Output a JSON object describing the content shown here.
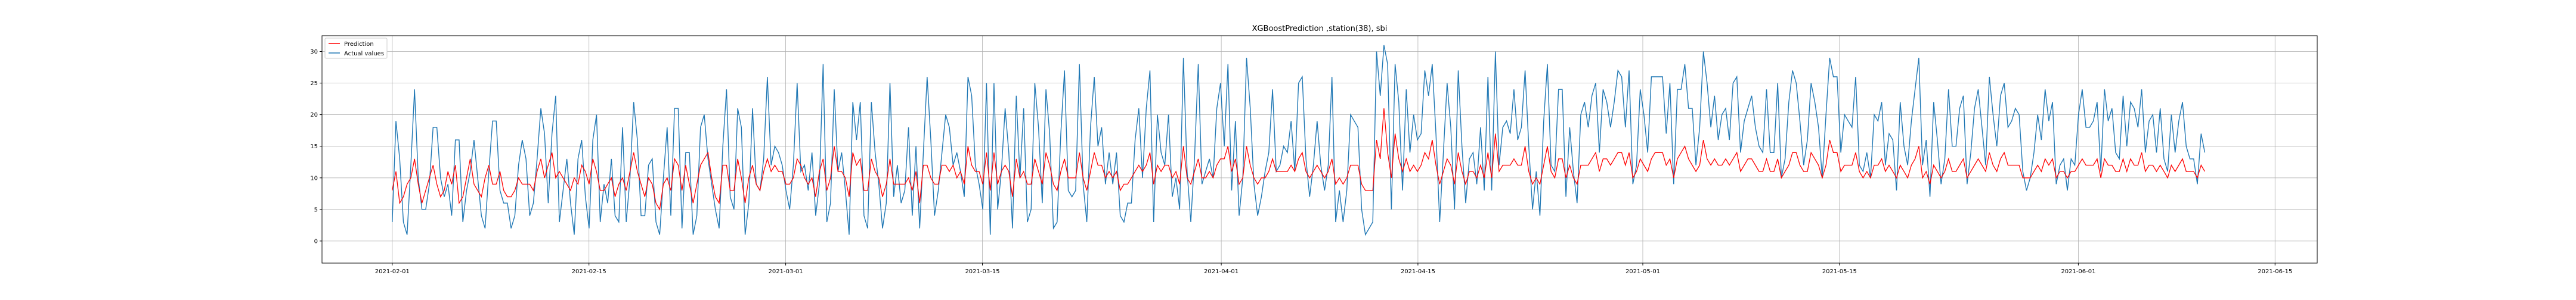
{
  "chart_data": {
    "type": "line",
    "title": "XGBoostPrediction ,station(38), sbi",
    "xlabel": "",
    "ylabel": "",
    "x_range": [
      "2021-01-27",
      "2021-06-18"
    ],
    "ylim": [
      -3.5,
      32.5
    ],
    "yticks": [
      0,
      5,
      10,
      15,
      20,
      25,
      30
    ],
    "xticks": [
      "2021-02-01",
      "2021-02-15",
      "2021-03-01",
      "2021-03-15",
      "2021-04-01",
      "2021-04-15",
      "2021-05-01",
      "2021-05-15",
      "2021-06-01",
      "2021-06-15"
    ],
    "grid": true,
    "legend_position": "top-left",
    "data_start": "2021-02-01",
    "data_end": "2021-06-10",
    "series": [
      {
        "name": "Prediction",
        "color": "#ff0000",
        "values": [
          8,
          11,
          6,
          7,
          9,
          10,
          13,
          9,
          6,
          8,
          10,
          12,
          9,
          7,
          8,
          11,
          9,
          12,
          6,
          7,
          10,
          13,
          9,
          8,
          7,
          10,
          12,
          9,
          9,
          11,
          8,
          7,
          7,
          8,
          10,
          9,
          9,
          9,
          8,
          11,
          13,
          10,
          12,
          14,
          10,
          11,
          10,
          9,
          8,
          10,
          9,
          12,
          11,
          9,
          13,
          11,
          8,
          8,
          9,
          10,
          7,
          9,
          10,
          8,
          11,
          14,
          11,
          9,
          7,
          10,
          9,
          6,
          5,
          9,
          10,
          8,
          13,
          12,
          8,
          12,
          9,
          6,
          9,
          12,
          13,
          14,
          10,
          7,
          6,
          12,
          12,
          8,
          8,
          13,
          10,
          6,
          10,
          12,
          9,
          8,
          11,
          13,
          11,
          12,
          11,
          11,
          9,
          9,
          10,
          13,
          12,
          10,
          9,
          10,
          7,
          11,
          13,
          8,
          10,
          15,
          11,
          11,
          10,
          7,
          14,
          12,
          13,
          8,
          8,
          13,
          11,
          10,
          7,
          9,
          13,
          9,
          9,
          9,
          9,
          10,
          8,
          11,
          6,
          12,
          12,
          10,
          9,
          9,
          12,
          12,
          11,
          12,
          10,
          11,
          9,
          15,
          12,
          11,
          11,
          9,
          14,
          8,
          14,
          9,
          11,
          12,
          11,
          7,
          13,
          10,
          11,
          9,
          9,
          13,
          11,
          9,
          14,
          12,
          9,
          8,
          11,
          13,
          10,
          10,
          10,
          14,
          10,
          8,
          11,
          14,
          12,
          12,
          10,
          11,
          10,
          11,
          8,
          9,
          9,
          10,
          11,
          12,
          11,
          12,
          14,
          9,
          12,
          11,
          12,
          12,
          10,
          11,
          9,
          15,
          10,
          9,
          11,
          13,
          10,
          10,
          11,
          10,
          12,
          13,
          13,
          15,
          11,
          13,
          9,
          10,
          15,
          12,
          10,
          9,
          10,
          10,
          11,
          13,
          11,
          11,
          11,
          11,
          12,
          11,
          13,
          14,
          11,
          10,
          11,
          12,
          11,
          10,
          11,
          13,
          9,
          10,
          9,
          10,
          12,
          12,
          12,
          9,
          8,
          8,
          8,
          16,
          13,
          21,
          14,
          10,
          17,
          13,
          11,
          13,
          11,
          12,
          11,
          12,
          14,
          13,
          16,
          12,
          9,
          11,
          13,
          12,
          9,
          14,
          11,
          9,
          11,
          11,
          10,
          12,
          10,
          14,
          10,
          17,
          11,
          12,
          12,
          12,
          13,
          12,
          12,
          15,
          11,
          9,
          10,
          9,
          12,
          15,
          11,
          10,
          13,
          13,
          10,
          12,
          10,
          9,
          12,
          12,
          12,
          13,
          14,
          11,
          13,
          13,
          12,
          13,
          14,
          14,
          12,
          14,
          10,
          11,
          13,
          12,
          11,
          13,
          14,
          14,
          14,
          12,
          13,
          10,
          13,
          14,
          15,
          13,
          12,
          11,
          12,
          16,
          13,
          12,
          13,
          12,
          12,
          13,
          12,
          13,
          14,
          11,
          12,
          13,
          13,
          12,
          11,
          11,
          13,
          11,
          11,
          13,
          10,
          11,
          12,
          14,
          14,
          12,
          11,
          11,
          14,
          13,
          12,
          10,
          12,
          16,
          14,
          14,
          11,
          12,
          12,
          12,
          14,
          11,
          10,
          11,
          10,
          12,
          12,
          13,
          11,
          12,
          11,
          10,
          12,
          11,
          10,
          12,
          13,
          15,
          10,
          11,
          9,
          12,
          11,
          10,
          11,
          13,
          11,
          11,
          12,
          13,
          10,
          11,
          12,
          13,
          12,
          11,
          14,
          12,
          11,
          13,
          14,
          12,
          12,
          12,
          12,
          10,
          10,
          10,
          11,
          12,
          11,
          13,
          12,
          13,
          10,
          11,
          11,
          10,
          11,
          11,
          12,
          13,
          12,
          12,
          12,
          13,
          10,
          13,
          12,
          12,
          11,
          11,
          13,
          11,
          13,
          12,
          12,
          14,
          11,
          12,
          12,
          11,
          12,
          11,
          10,
          12,
          11,
          12,
          13,
          11,
          11,
          11,
          10,
          12,
          11
        ]
      },
      {
        "name": "Actual values",
        "color": "#1f77b4",
        "values": [
          3,
          19,
          13,
          3,
          1,
          12,
          24,
          10,
          5,
          5,
          9,
          18,
          18,
          10,
          7,
          9,
          4,
          16,
          16,
          3,
          8,
          11,
          16,
          10,
          4,
          2,
          11,
          19,
          19,
          8,
          6,
          6,
          2,
          4,
          12,
          16,
          13,
          4,
          6,
          13,
          21,
          17,
          6,
          17,
          23,
          3,
          8,
          13,
          6,
          1,
          13,
          16,
          7,
          2,
          16,
          20,
          3,
          9,
          6,
          13,
          4,
          3,
          18,
          3,
          10,
          22,
          16,
          4,
          4,
          12,
          13,
          3,
          1,
          10,
          18,
          4,
          21,
          21,
          2,
          14,
          14,
          1,
          4,
          18,
          20,
          13,
          9,
          5,
          2,
          15,
          24,
          7,
          5,
          21,
          18,
          1,
          6,
          21,
          9,
          8,
          13,
          26,
          12,
          15,
          14,
          12,
          8,
          5,
          12,
          25,
          11,
          12,
          8,
          14,
          4,
          9,
          28,
          3,
          6,
          24,
          11,
          14,
          8,
          1,
          22,
          16,
          22,
          4,
          2,
          22,
          14,
          9,
          2,
          6,
          25,
          7,
          12,
          6,
          8,
          18,
          4,
          15,
          2,
          14,
          26,
          16,
          4,
          8,
          14,
          20,
          18,
          12,
          14,
          11,
          7,
          26,
          23,
          12,
          9,
          5,
          25,
          1,
          25,
          5,
          11,
          21,
          14,
          2,
          23,
          10,
          21,
          3,
          5,
          25,
          18,
          6,
          24,
          17,
          2,
          3,
          17,
          27,
          8,
          7,
          8,
          28,
          9,
          3,
          18,
          26,
          15,
          18,
          9,
          14,
          9,
          14,
          4,
          3,
          6,
          6,
          16,
          21,
          10,
          21,
          27,
          3,
          20,
          14,
          12,
          20,
          7,
          10,
          5,
          29,
          11,
          3,
          13,
          28,
          9,
          11,
          13,
          10,
          21,
          25,
          15,
          28,
          8,
          19,
          4,
          10,
          29,
          21,
          9,
          4,
          7,
          11,
          14,
          24,
          11,
          12,
          15,
          14,
          19,
          11,
          25,
          26,
          13,
          7,
          12,
          19,
          12,
          8,
          12,
          26,
          3,
          8,
          3,
          8,
          20,
          19,
          18,
          5,
          1,
          2,
          3,
          30,
          23,
          31,
          28,
          5,
          28,
          22,
          8,
          24,
          14,
          20,
          16,
          17,
          27,
          23,
          28,
          17,
          3,
          14,
          25,
          18,
          5,
          27,
          15,
          6,
          13,
          14,
          9,
          18,
          8,
          26,
          8,
          30,
          12,
          18,
          19,
          17,
          24,
          16,
          18,
          27,
          15,
          5,
          11,
          4,
          19,
          28,
          12,
          11,
          24,
          24,
          7,
          18,
          11,
          6,
          20,
          22,
          18,
          23,
          25,
          14,
          24,
          22,
          18,
          22,
          27,
          26,
          18,
          27,
          9,
          12,
          24,
          20,
          14,
          26,
          26,
          26,
          26,
          17,
          25,
          9,
          24,
          24,
          28,
          21,
          21,
          12,
          18,
          30,
          25,
          18,
          23,
          16,
          20,
          21,
          16,
          25,
          26,
          14,
          19,
          21,
          23,
          18,
          15,
          14,
          24,
          14,
          14,
          25,
          10,
          13,
          22,
          27,
          25,
          19,
          12,
          16,
          25,
          22,
          18,
          10,
          20,
          29,
          26,
          26,
          14,
          20,
          19,
          18,
          26,
          12,
          11,
          14,
          10,
          20,
          19,
          22,
          12,
          17,
          16,
          8,
          22,
          15,
          12,
          19,
          24,
          29,
          12,
          16,
          7,
          22,
          16,
          9,
          13,
          24,
          15,
          15,
          21,
          23,
          9,
          14,
          21,
          24,
          18,
          12,
          26,
          20,
          15,
          23,
          25,
          18,
          19,
          21,
          20,
          11,
          8,
          10,
          14,
          20,
          16,
          24,
          19,
          22,
          9,
          12,
          13,
          8,
          13,
          12,
          20,
          24,
          18,
          18,
          19,
          22,
          11,
          24,
          19,
          21,
          14,
          13,
          23,
          15,
          22,
          21,
          18,
          24,
          14,
          19,
          20,
          14,
          21,
          13,
          11,
          20,
          14,
          19,
          22,
          15,
          13,
          13,
          9,
          17,
          14
        ]
      }
    ]
  }
}
